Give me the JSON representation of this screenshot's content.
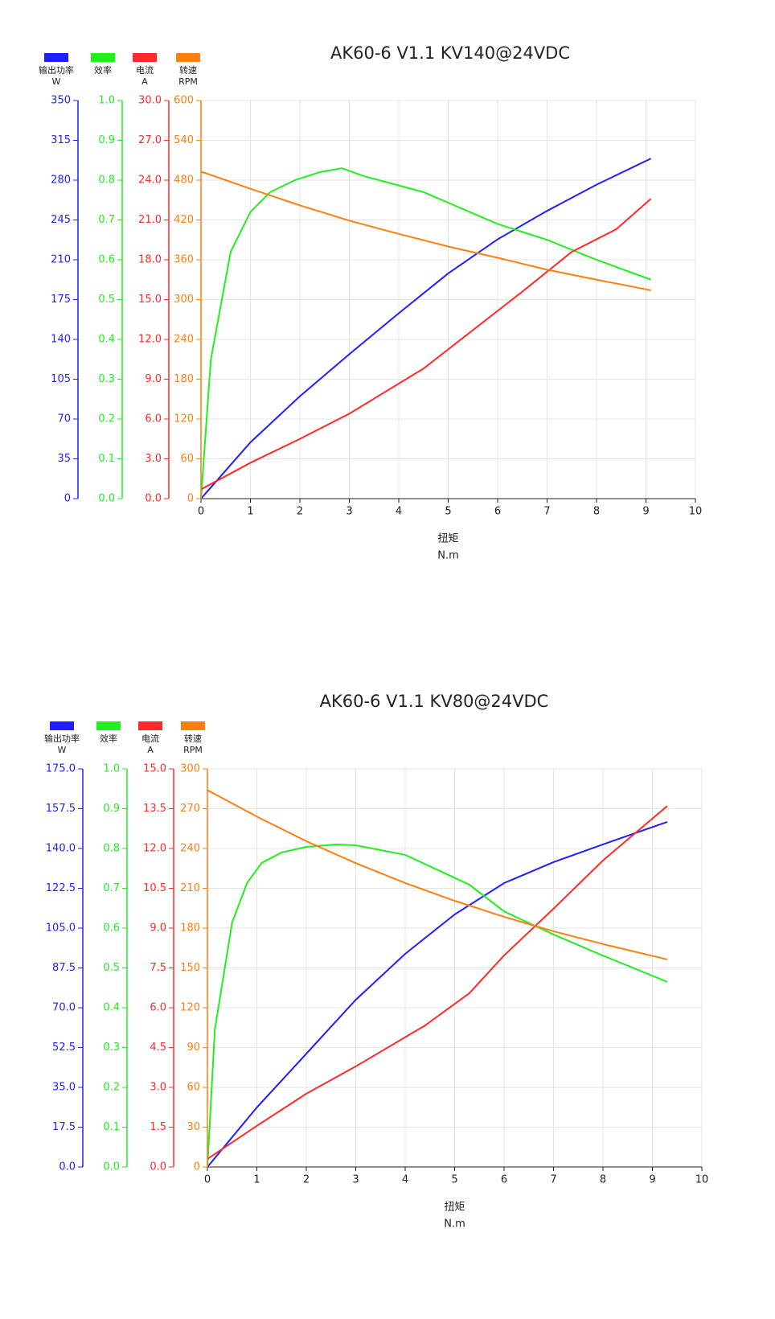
{
  "chart_data": [
    {
      "type": "line",
      "title": "AK60-6 V1.1 KV140@24VDC",
      "x_label": "扭矩",
      "x_unit": "N.m",
      "xlim": [
        0,
        10
      ],
      "xticks": [
        0,
        1,
        2,
        3,
        4,
        5,
        6,
        7,
        8,
        9,
        10
      ],
      "grid": true,
      "legend": "top-left",
      "series": [
        {
          "name": "输出功率",
          "unit": "W",
          "color": "#1f1fff",
          "ylim": [
            0,
            350
          ],
          "yticks": [
            0,
            35,
            70,
            105,
            140,
            175,
            210,
            245,
            280,
            315,
            350
          ],
          "x": [
            0,
            1,
            2,
            3,
            4,
            5,
            6,
            7,
            8,
            9.1
          ],
          "values": [
            0,
            49.5,
            90,
            127,
            163,
            198,
            228,
            253,
            276,
            299
          ]
        },
        {
          "name": "效率",
          "unit": null,
          "color": "#22ee22",
          "ylim": [
            0,
            1
          ],
          "yticks": [
            {
              "value": 0,
              "label": "0.0"
            },
            0.1,
            0.2,
            0.3,
            0.4,
            0.5,
            0.6,
            0.7,
            0.8,
            0.9,
            {
              "value": 1,
              "label": "1.0"
            }
          ],
          "x": [
            0,
            0.2,
            0.6,
            1,
            1.4,
            1.9,
            2.4,
            2.85,
            3.3,
            4.5,
            6,
            7,
            8,
            9.1
          ],
          "values": [
            0,
            0.35,
            0.62,
            0.72,
            0.77,
            0.8,
            0.82,
            0.83,
            0.81,
            0.77,
            0.69,
            0.65,
            0.6,
            0.55
          ]
        },
        {
          "name": "电流",
          "unit": "A",
          "color": "#ff2a2a",
          "ylim": [
            0,
            30
          ],
          "yticks": [
            {
              "value": 0,
              "label": "0.0"
            },
            {
              "value": 3,
              "label": "3.0"
            },
            {
              "value": 6,
              "label": "6.0"
            },
            {
              "value": 9,
              "label": "9.0"
            },
            {
              "value": 12,
              "label": "12.0"
            },
            {
              "value": 15,
              "label": "15.0"
            },
            {
              "value": 18,
              "label": "18.0"
            },
            {
              "value": 21,
              "label": "21.0"
            },
            {
              "value": 24,
              "label": "24.0"
            },
            {
              "value": 27,
              "label": "27.0"
            },
            {
              "value": 30,
              "label": "30.0"
            }
          ],
          "x": [
            0,
            1,
            2,
            3,
            4.5,
            5.5,
            6.5,
            7.5,
            8.4,
            9.1
          ],
          "values": [
            0.7,
            2.7,
            4.5,
            6.4,
            9.8,
            12.7,
            15.6,
            18.6,
            20.3,
            22.6
          ]
        },
        {
          "name": "转速",
          "unit": "RPM",
          "color": "#ff7f0e",
          "ylim": [
            0,
            600
          ],
          "yticks": [
            0,
            60,
            120,
            180,
            240,
            300,
            360,
            420,
            480,
            540,
            600
          ],
          "x": [
            0,
            1,
            2,
            3,
            4,
            5,
            6,
            7,
            8,
            9.1
          ],
          "values": [
            493,
            467,
            442,
            419,
            399,
            380,
            363,
            345,
            330,
            314
          ]
        }
      ]
    },
    {
      "type": "line",
      "title": "AK60-6 V1.1 KV80@24VDC",
      "x_label": "扭矩",
      "x_unit": "N.m",
      "xlim": [
        0,
        10
      ],
      "xticks": [
        0,
        1,
        2,
        3,
        4,
        5,
        6,
        7,
        8,
        9,
        10
      ],
      "grid": true,
      "legend": "top-left",
      "series": [
        {
          "name": "输出功率",
          "unit": "W",
          "color": "#1f1fff",
          "ylim": [
            0,
            175
          ],
          "yticks": [
            {
              "value": 0,
              "label": "0.0"
            },
            17.5,
            {
              "value": 35,
              "label": "35.0"
            },
            52.5,
            {
              "value": 70,
              "label": "70.0"
            },
            87.5,
            {
              "value": 105,
              "label": "105.0"
            },
            122.5,
            {
              "value": 140,
              "label": "140.0"
            },
            157.5,
            {
              "value": 175,
              "label": "175.0"
            }
          ],
          "x": [
            0,
            1,
            2,
            3,
            4,
            5,
            6,
            7,
            8,
            9.3
          ],
          "values": [
            0,
            26.2,
            49.8,
            73.5,
            93.7,
            111,
            124.8,
            134,
            141.8,
            151.7
          ]
        },
        {
          "name": "效率",
          "unit": null,
          "color": "#22ee22",
          "ylim": [
            0,
            1
          ],
          "yticks": [
            {
              "value": 0,
              "label": "0.0"
            },
            0.1,
            0.2,
            0.3,
            0.4,
            0.5,
            0.6,
            0.7,
            0.8,
            0.9,
            {
              "value": 1,
              "label": "1.0"
            }
          ],
          "x": [
            0,
            0.15,
            0.5,
            0.8,
            1.1,
            1.5,
            2,
            2.6,
            3,
            4,
            5.3,
            6,
            7,
            8,
            9.3
          ],
          "values": [
            0,
            0.345,
            0.614,
            0.713,
            0.764,
            0.79,
            0.804,
            0.81,
            0.808,
            0.784,
            0.709,
            0.642,
            0.584,
            0.531,
            0.465
          ]
        },
        {
          "name": "电流",
          "unit": "A",
          "color": "#ff2a2a",
          "ylim": [
            0,
            15
          ],
          "yticks": [
            {
              "value": 0,
              "label": "0.0"
            },
            1.5,
            {
              "value": 3,
              "label": "3.0"
            },
            4.5,
            {
              "value": 6,
              "label": "6.0"
            },
            7.5,
            {
              "value": 9,
              "label": "9.0"
            },
            10.5,
            {
              "value": 12,
              "label": "12.0"
            },
            13.5,
            {
              "value": 15,
              "label": "15.0"
            }
          ],
          "x": [
            0,
            1,
            2,
            3,
            4.4,
            5.3,
            6,
            7,
            8,
            9.3
          ],
          "values": [
            0.3,
            1.55,
            2.76,
            3.79,
            5.33,
            6.55,
            7.97,
            9.73,
            11.55,
            13.6
          ]
        },
        {
          "name": "转速",
          "unit": "RPM",
          "color": "#ff7f0e",
          "ylim": [
            0,
            300
          ],
          "yticks": [
            0,
            30,
            60,
            90,
            120,
            150,
            180,
            210,
            240,
            270,
            300
          ],
          "x": [
            0,
            1,
            2,
            3,
            4,
            5,
            6,
            7,
            8,
            9.3
          ],
          "values": [
            284,
            264,
            245.5,
            229,
            214,
            200.6,
            188.5,
            177.6,
            168,
            156.4
          ]
        }
      ]
    }
  ]
}
